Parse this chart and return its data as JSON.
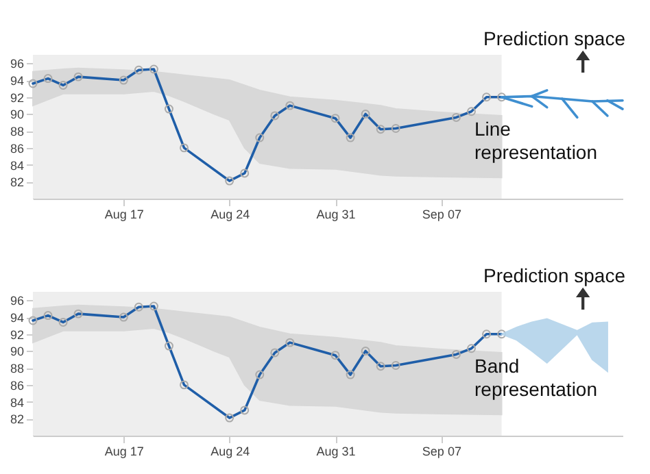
{
  "chart_data": [
    {
      "type": "line",
      "xlim": [
        "--08-11",
        "--09-19"
      ],
      "ylim": [
        80,
        97
      ],
      "xticks": [
        {
          "value": "--08-17",
          "label": "Aug 17"
        },
        {
          "value": "--08-24",
          "label": "Aug 24"
        },
        {
          "value": "--08-31",
          "label": "Aug 31"
        },
        {
          "value": "--09-07",
          "label": "Sep 07"
        }
      ],
      "yticks": [
        82,
        84,
        86,
        88,
        90,
        92,
        94,
        96
      ],
      "grid": false,
      "bands": [
        {
          "axis": "x",
          "from": "--08-11",
          "to": "--09-11",
          "color": "#eeeeee"
        }
      ],
      "annotations": [
        "Prediction space",
        "Line representation"
      ],
      "series": [
        {
          "color": "#d6d6d6",
          "x": [
            "--08-11",
            "--08-13",
            "--08-14",
            "--08-17",
            "--08-19",
            "--08-20",
            "--08-21",
            "--08-23",
            "--08-24",
            "--08-25",
            "--08-26",
            "--08-28",
            "--08-31",
            "--09-03",
            "--09-04",
            "--09-07",
            "--09-11"
          ],
          "values": [
            null,
            null,
            null,
            null,
            null,
            null,
            null,
            null,
            null,
            null,
            null,
            null,
            null,
            null,
            null,
            null,
            null
          ],
          "lower": [
            91.0,
            92.4,
            92.4,
            92.4,
            92.7,
            92.2,
            91.5,
            90.0,
            89.3,
            86.0,
            84.2,
            83.6,
            83.5,
            82.8,
            82.7,
            82.6,
            82.5
          ],
          "upper": [
            95.0,
            95.3,
            95.4,
            95.2,
            95.0,
            94.8,
            94.6,
            94.2,
            94.0,
            93.4,
            92.8,
            92.0,
            91.6,
            91.0,
            90.6,
            90.2,
            89.8
          ]
        },
        {
          "color": "#1f5ea8",
          "marker": "circle",
          "x": [
            "--08-11",
            "--08-12",
            "--08-13",
            "--08-14",
            "--08-17",
            "--08-18",
            "--08-19",
            "--08-20",
            "--08-21",
            "--08-24",
            "--08-25",
            "--08-26",
            "--08-27",
            "--08-28",
            "--08-31",
            "--09-01",
            "--09-02",
            "--09-03",
            "--09-04",
            "--09-08",
            "--09-09",
            "--09-10",
            "--09-11"
          ],
          "values": [
            93.6,
            94.2,
            93.4,
            94.4,
            94.0,
            95.2,
            95.3,
            90.6,
            86.0,
            82.1,
            83.0,
            87.2,
            89.8,
            91.0,
            89.5,
            87.2,
            90.0,
            88.2,
            88.3,
            89.6,
            90.3,
            92.0,
            92.0
          ]
        },
        {
          "color": "#3f8fd0",
          "x": [
            "--09-11",
            "--09-13",
            "--09-15",
            "--09-17",
            "--09-19"
          ],
          "values": [
            92.0,
            92.1,
            91.8,
            91.5,
            91.6
          ]
        },
        {
          "color": "#3f8fd0",
          "x": [
            "--09-11",
            "--09-13"
          ],
          "values": [
            92.0,
            90.9
          ]
        },
        {
          "color": "#3f8fd0",
          "x": [
            "--09-13",
            "--09-14"
          ],
          "values": [
            92.1,
            92.8
          ]
        },
        {
          "color": "#3f8fd0",
          "x": [
            "--09-13",
            "--09-14"
          ],
          "values": [
            92.1,
            90.8
          ]
        },
        {
          "color": "#3f8fd0",
          "x": [
            "--09-15",
            "--09-16"
          ],
          "values": [
            91.8,
            89.6
          ]
        },
        {
          "color": "#3f8fd0",
          "x": [
            "--09-17",
            "--09-18"
          ],
          "values": [
            91.5,
            89.8
          ]
        },
        {
          "color": "#3f8fd0",
          "x": [
            "--09-18",
            "--09-19"
          ],
          "values": [
            91.6,
            90.6
          ]
        }
      ]
    },
    {
      "type": "line",
      "xlim": [
        "--08-11",
        "--09-19"
      ],
      "ylim": [
        80,
        97
      ],
      "xticks": [
        {
          "value": "--08-17",
          "label": "Aug 17"
        },
        {
          "value": "--08-24",
          "label": "Aug 24"
        },
        {
          "value": "--08-31",
          "label": "Aug 31"
        },
        {
          "value": "--09-07",
          "label": "Sep 07"
        }
      ],
      "yticks": [
        82,
        84,
        86,
        88,
        90,
        92,
        94,
        96
      ],
      "grid": false,
      "bands": [
        {
          "axis": "x",
          "from": "--08-11",
          "to": "--09-11",
          "color": "#eeeeee"
        }
      ],
      "annotations": [
        "Prediction space",
        "Band representation"
      ],
      "series": [
        {
          "color": "#d6d6d6",
          "x": [
            "--08-11",
            "--08-13",
            "--08-14",
            "--08-17",
            "--08-19",
            "--08-20",
            "--08-21",
            "--08-23",
            "--08-24",
            "--08-25",
            "--08-26",
            "--08-28",
            "--08-31",
            "--09-03",
            "--09-04",
            "--09-07",
            "--09-11"
          ],
          "values": [
            null,
            null,
            null,
            null,
            null,
            null,
            null,
            null,
            null,
            null,
            null,
            null,
            null,
            null,
            null,
            null,
            null
          ],
          "lower": [
            91.0,
            92.4,
            92.4,
            92.4,
            92.7,
            92.2,
            91.5,
            90.0,
            89.3,
            86.0,
            84.2,
            83.6,
            83.5,
            82.8,
            82.7,
            82.6,
            82.5
          ],
          "upper": [
            95.0,
            95.3,
            95.4,
            95.2,
            95.0,
            94.8,
            94.6,
            94.2,
            94.0,
            93.4,
            92.8,
            92.0,
            91.6,
            91.0,
            90.6,
            90.2,
            89.8
          ]
        },
        {
          "color": "#1f5ea8",
          "marker": "circle",
          "x": [
            "--08-11",
            "--08-12",
            "--08-13",
            "--08-14",
            "--08-17",
            "--08-18",
            "--08-19",
            "--08-20",
            "--08-21",
            "--08-24",
            "--08-25",
            "--08-26",
            "--08-27",
            "--08-28",
            "--08-31",
            "--09-01",
            "--09-02",
            "--09-03",
            "--09-04",
            "--09-08",
            "--09-09",
            "--09-10",
            "--09-11"
          ],
          "values": [
            93.6,
            94.2,
            93.4,
            94.4,
            94.0,
            95.2,
            95.3,
            90.6,
            86.0,
            82.1,
            83.0,
            87.2,
            89.8,
            91.0,
            89.5,
            87.2,
            90.0,
            88.2,
            88.3,
            89.6,
            90.3,
            92.0,
            92.0
          ]
        },
        {
          "color": "#b3d3ea",
          "x": [
            "--09-11",
            "--09-12",
            "--09-13",
            "--09-14",
            "--09-16",
            "--09-17",
            "--09-18"
          ],
          "values": [
            null,
            null,
            null,
            null,
            null,
            null,
            null
          ],
          "lower": [
            92.0,
            91.3,
            90.0,
            88.6,
            92.0,
            89.0,
            87.6
          ],
          "upper": [
            92.0,
            92.8,
            93.4,
            93.8,
            92.4,
            93.3,
            93.4
          ]
        }
      ]
    }
  ]
}
